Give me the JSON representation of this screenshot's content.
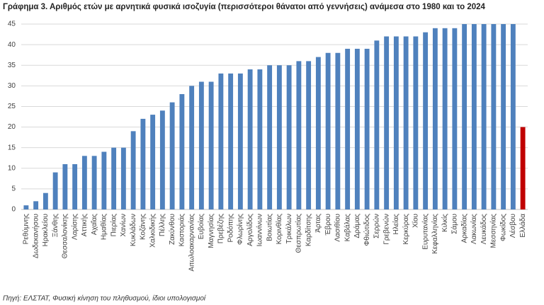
{
  "chart_data": {
    "type": "bar",
    "title": "Γράφημα 3. Αριθμός ετών με αρνητικά φυσικά ισοζυγία (περισσότεροι θάνατοι από γεννήσεις) ανάμεσα στο 1980 και το 2024",
    "note": "Πηγή: ΕΛΣΤΑΤ, Φυσική κίνηση του πληθυσμού, ίδιοι υπολογισμοί",
    "categories": [
      "Ρεθύμνης",
      "Δωδεκανήσου",
      "Ηρακλείου",
      "Ξάνθης",
      "Θεσσαλονίκης",
      "Λαρίσης",
      "Αττικής",
      "Αχαΐας",
      "Ημαθίας",
      "Πιερίας",
      "Χανίων",
      "Κυκλάδων",
      "Κοζάνης",
      "Χαλκιδικής",
      "Πέλλης",
      "Ζακύνθου",
      "Καστοριάς",
      "Αιτωλοακαρνανίας",
      "Ευβοίας",
      "Μαγνησίας",
      "Πρεβέζης",
      "Ροδόπης",
      "Φλωρίνης",
      "Αργολίδος",
      "Ιωαννίνων",
      "Βοιωτίας",
      "Κορινθίας",
      "Τρικάλων",
      "Θεσπρωτίας",
      "Καρδίτσης",
      "Άρτας",
      "Έβρου",
      "Λασιθίου",
      "Καβάλας",
      "Δράμας",
      "Φθιώτιδος",
      "Σερρών",
      "Γρεβενών",
      "Ηλείας",
      "Κερκύρας",
      "Χίου",
      "Ευρυτανίας",
      "Κεφαλληνίας",
      "Κιλκίς",
      "Σάμου",
      "Αρκαδίας",
      "Λακωνίας",
      "Λευκάδος",
      "Μεσσηνίας",
      "Φωκίδος",
      "Λέσβου",
      "Ελλάδα"
    ],
    "values": [
      1,
      2,
      4,
      9,
      11,
      11,
      13,
      13,
      14,
      15,
      15,
      19,
      22,
      23,
      24,
      26,
      28,
      30,
      31,
      31,
      33,
      33,
      33,
      34,
      34,
      35,
      35,
      35,
      36,
      36,
      37,
      38,
      38,
      39,
      39,
      39,
      41,
      42,
      42,
      42,
      42,
      43,
      44,
      44,
      44,
      45,
      45,
      45,
      45,
      45,
      45,
      20
    ],
    "colors": [
      "#4f81bd",
      "#4f81bd",
      "#4f81bd",
      "#4f81bd",
      "#4f81bd",
      "#4f81bd",
      "#4f81bd",
      "#4f81bd",
      "#4f81bd",
      "#4f81bd",
      "#4f81bd",
      "#4f81bd",
      "#4f81bd",
      "#4f81bd",
      "#4f81bd",
      "#4f81bd",
      "#4f81bd",
      "#4f81bd",
      "#4f81bd",
      "#4f81bd",
      "#4f81bd",
      "#4f81bd",
      "#4f81bd",
      "#4f81bd",
      "#4f81bd",
      "#4f81bd",
      "#4f81bd",
      "#4f81bd",
      "#4f81bd",
      "#4f81bd",
      "#4f81bd",
      "#4f81bd",
      "#4f81bd",
      "#4f81bd",
      "#4f81bd",
      "#4f81bd",
      "#4f81bd",
      "#4f81bd",
      "#4f81bd",
      "#4f81bd",
      "#4f81bd",
      "#4f81bd",
      "#4f81bd",
      "#4f81bd",
      "#4f81bd",
      "#4f81bd",
      "#4f81bd",
      "#4f81bd",
      "#4f81bd",
      "#4f81bd",
      "#4f81bd",
      "#c00000"
    ],
    "ylim": [
      0,
      45
    ],
    "yticks": [
      0,
      5,
      10,
      15,
      20,
      25,
      30,
      35,
      40,
      45
    ],
    "grid": true
  }
}
